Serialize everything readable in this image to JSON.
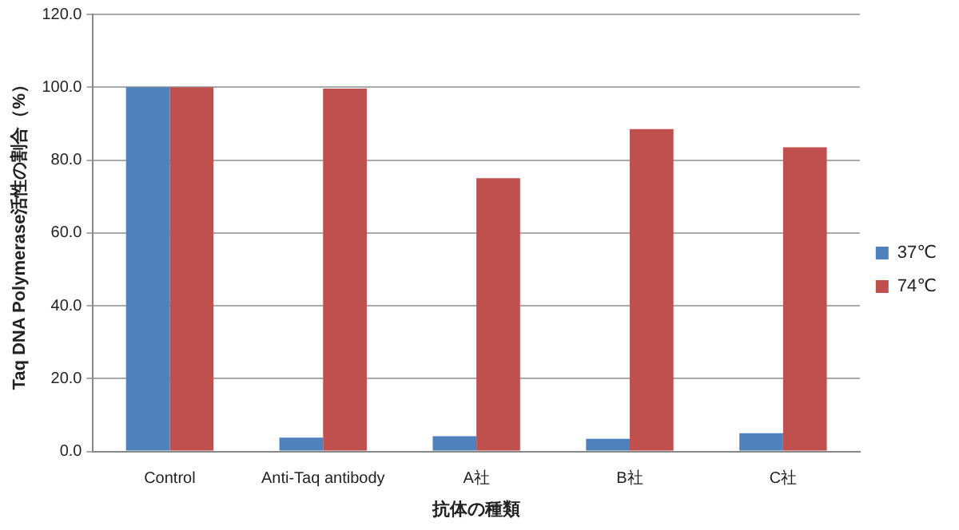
{
  "chart_data": {
    "type": "bar",
    "xlabel": "抗体の種類",
    "ylabel": "Taq DNA Polymerase活性の割合（%）",
    "categories": [
      "Control",
      "Anti-Taq antibody",
      "A社",
      "B社",
      "C社"
    ],
    "series": [
      {
        "name": "37℃",
        "color": "#4f81bd",
        "values": [
          100,
          3.8,
          4.2,
          3.5,
          5.0
        ]
      },
      {
        "name": "74℃",
        "color": "#c0504d",
        "values": [
          100,
          99.6,
          75,
          88.5,
          83.5
        ]
      }
    ],
    "ylim": [
      0,
      120
    ],
    "yticks": [
      {
        "value": 0,
        "label": "0.0"
      },
      {
        "value": 20,
        "label": "20.0"
      },
      {
        "value": 40,
        "label": "40.0"
      },
      {
        "value": 60,
        "label": "60.0"
      },
      {
        "value": 80,
        "label": "80.0"
      },
      {
        "value": 100,
        "label": "100.0"
      },
      {
        "value": 120,
        "label": "120.0"
      }
    ],
    "grid": "y",
    "legend": "right"
  }
}
